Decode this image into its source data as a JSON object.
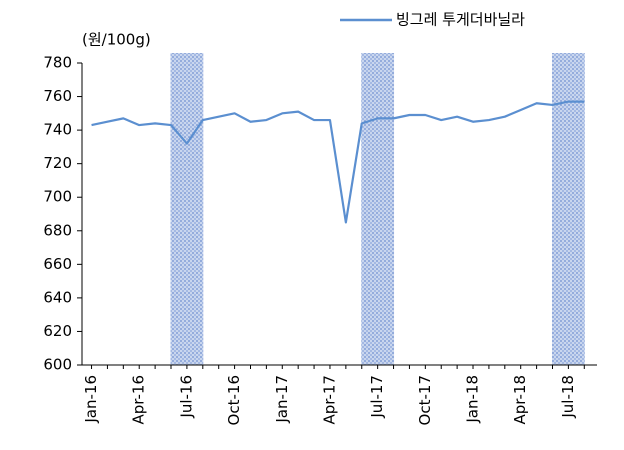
{
  "chart_data": {
    "type": "line",
    "y_axis_label": "(원/100g)",
    "categories": [
      "Jan-16",
      null,
      null,
      "Apr-16",
      null,
      null,
      "Jul-16",
      null,
      null,
      "Oct-16",
      null,
      null,
      "Jan-17",
      null,
      null,
      "Apr-17",
      null,
      null,
      "Jul-17",
      null,
      null,
      "Oct-17",
      null,
      null,
      "Jan-18",
      null,
      null,
      "Apr-18",
      null,
      null,
      "Jul-18",
      null
    ],
    "series": [
      {
        "name": "빙그레 투게더바닐라",
        "color": "#5b8fd0",
        "values": [
          743,
          745,
          747,
          743,
          744,
          743,
          732,
          746,
          748,
          750,
          745,
          746,
          750,
          751,
          746,
          746,
          685,
          744,
          747,
          747,
          749,
          749,
          746,
          748,
          745,
          746,
          748,
          752,
          756,
          755,
          757,
          757
        ]
      }
    ],
    "shaded_x_ranges": [
      [
        5,
        7
      ],
      [
        17,
        19
      ],
      [
        29,
        31
      ]
    ],
    "ylim": [
      600,
      780
    ],
    "yticks": [
      600,
      620,
      640,
      660,
      680,
      700,
      720,
      740,
      760,
      780
    ],
    "legend": "top-right"
  }
}
